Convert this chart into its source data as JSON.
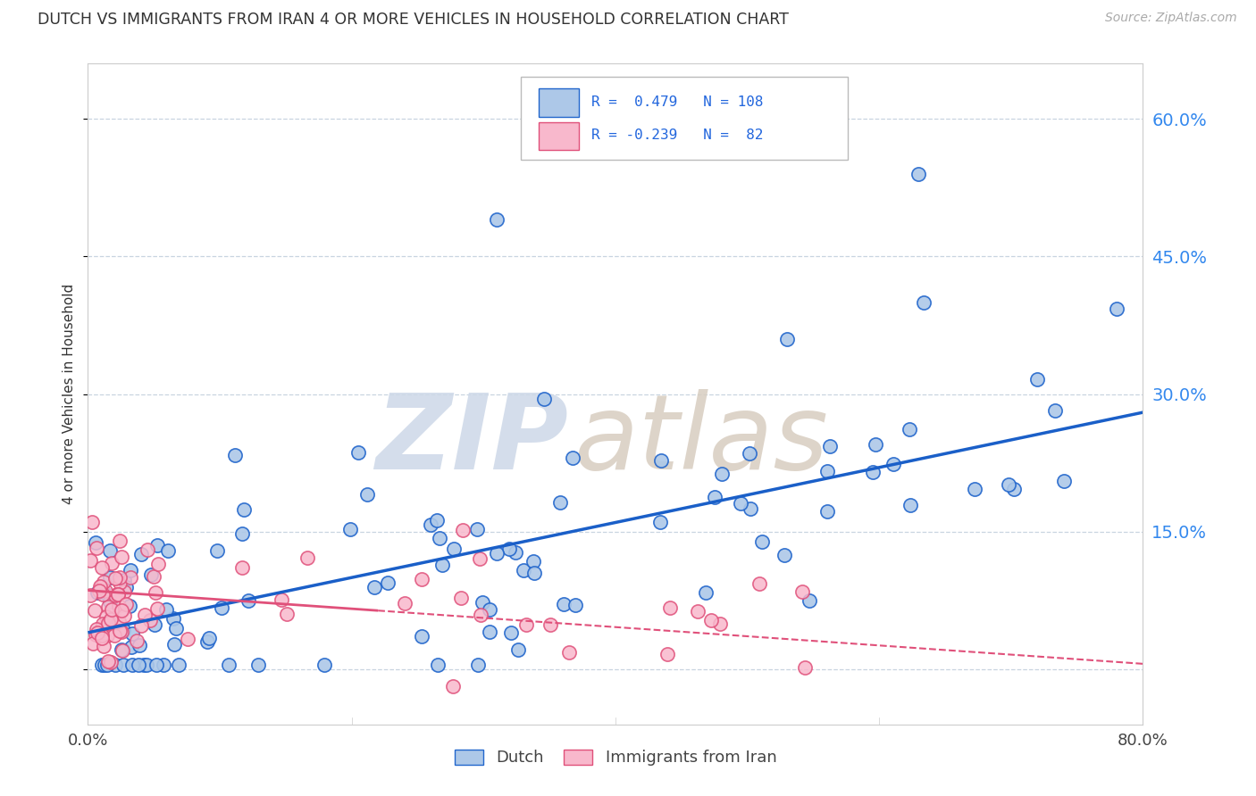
{
  "title": "DUTCH VS IMMIGRANTS FROM IRAN 4 OR MORE VEHICLES IN HOUSEHOLD CORRELATION CHART",
  "source": "Source: ZipAtlas.com",
  "ylabel": "4 or more Vehicles in Household",
  "ytick_values": [
    0.0,
    0.15,
    0.3,
    0.45,
    0.6
  ],
  "ytick_labels": [
    "",
    "15.0%",
    "30.0%",
    "45.0%",
    "60.0%"
  ],
  "xlim": [
    0.0,
    0.8
  ],
  "ylim": [
    -0.06,
    0.66
  ],
  "xlim_display": [
    0.0,
    0.8
  ],
  "legend_dutch_R": "0.479",
  "legend_dutch_N": "108",
  "legend_iran_R": "-0.239",
  "legend_iran_N": "82",
  "dutch_face_color": "#adc8e8",
  "dutch_edge_color": "#2266cc",
  "iran_face_color": "#f8b8cc",
  "iran_edge_color": "#e0507a",
  "dutch_line_color": "#1a5fc8",
  "iran_line_color": "#e0507a",
  "watermark_zip_color": "#cdd8e8",
  "watermark_atlas_color": "#d8cdc0",
  "background_color": "#ffffff",
  "grid_color": "#c8d4e0",
  "legend_dutch_line1": "R =  0.479   N = 108",
  "legend_iran_line2": "R = -0.239   N =  82"
}
